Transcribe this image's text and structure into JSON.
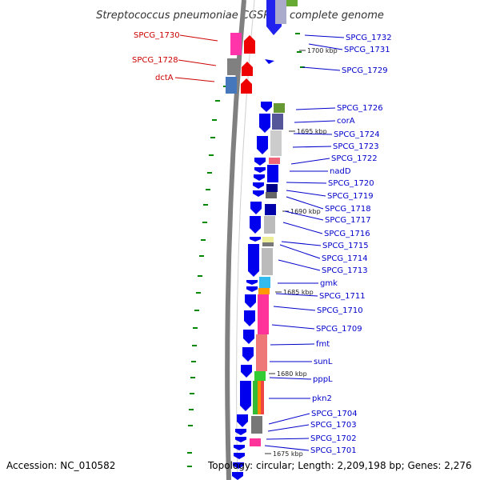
{
  "title": "Streptococcus pneumoniae CGSP14, complete genome",
  "footer": {
    "accession": "Accession: NC_010582",
    "topology": "Topology: circular; Length: 2,209,198 bp; Genes: 2,276"
  },
  "colors": {
    "plus_label": "#0000cc",
    "minus_label": "#cc0000",
    "backbone": "#808080",
    "arrow": "#0000ee",
    "tick": "#008800"
  },
  "scale_ticks": [
    "1700 kbp",
    "1695 kbp",
    "1690 kbp",
    "1685 kbp",
    "1680 kbp",
    "1675 kbp"
  ],
  "minus_strand_labels": [
    "SPCG_1730",
    "SPCG_1728",
    "dctA"
  ],
  "plus_strand_labels": [
    "SPCG_1732",
    "SPCG_1731",
    "SPCG_1729",
    "SPCG_1726",
    "corA",
    "SPCG_1724",
    "SPCG_1723",
    "SPCG_1722",
    "nadD",
    "SPCG_1720",
    "SPCG_1719",
    "SPCG_1718",
    "SPCG_1717",
    "SPCG_1716",
    "SPCG_1715",
    "SPCG_1714",
    "SPCG_1713",
    "gmk",
    "SPCG_1711",
    "SPCG_1710",
    "SPCG_1709",
    "fmt",
    "sunL",
    "pppL",
    "pkn2",
    "SPCG_1704",
    "SPCG_1703",
    "SPCG_1702",
    "SPCG_1701"
  ]
}
